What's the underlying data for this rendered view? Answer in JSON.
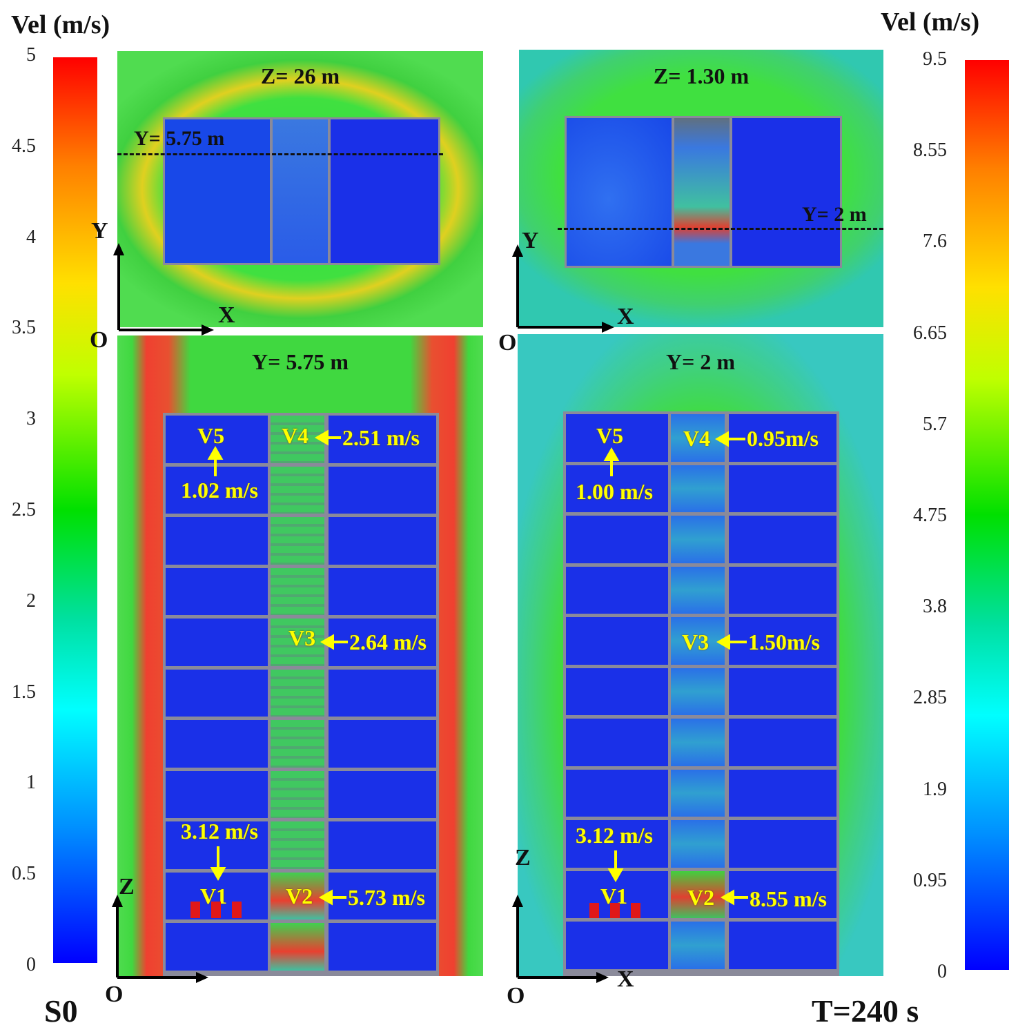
{
  "left_scale": {
    "title": "Vel (m/s)",
    "ticks": [
      "5",
      "4.5",
      "4",
      "3.5",
      "3",
      "2.5",
      "2",
      "1.5",
      "1",
      "0.5",
      "0"
    ]
  },
  "right_scale": {
    "title": "Vel (m/s)",
    "ticks": [
      "9.5",
      "8.55",
      "7.6",
      "6.65",
      "5.7",
      "4.75",
      "3.8",
      "2.85",
      "1.9",
      "0.95",
      "0"
    ]
  },
  "panels": {
    "top_left": {
      "title": "Z= 26 m",
      "cut_label": "Y= 5.75 m",
      "axis_v": "Y",
      "axis_h": "X",
      "origin": "O"
    },
    "top_right": {
      "title": "Z= 1.30 m",
      "cut_label": "Y= 2 m",
      "axis_v": "Y",
      "axis_h": "X",
      "origin": "O"
    },
    "bottom_left": {
      "title": "Y= 5.75 m",
      "axis_v": "Z",
      "origin": "O",
      "annotations": {
        "v5": "V5",
        "v5_val": "1.02 m/s",
        "v4": "V4",
        "v4_val": "2.51 m/s",
        "v3": "V3",
        "v3_val": "2.64 m/s",
        "v1": "V1",
        "v1_val": "3.12 m/s",
        "v2": "V2",
        "v2_val": "5.73 m/s"
      }
    },
    "bottom_right": {
      "title": "Y= 2 m",
      "axis_v": "Z",
      "axis_h": "X",
      "origin": "O",
      "annotations": {
        "v5": "V5",
        "v5_val": "1.00 m/s",
        "v4": "V4",
        "v4_val": "0.95m/s",
        "v3": "V3",
        "v3_val": "1.50m/s",
        "v1": "V1",
        "v1_val": "3.12 m/s",
        "v2": "V2",
        "v2_val": "8.55 m/s"
      }
    }
  },
  "scenario": "S0",
  "time": "T=240 s"
}
